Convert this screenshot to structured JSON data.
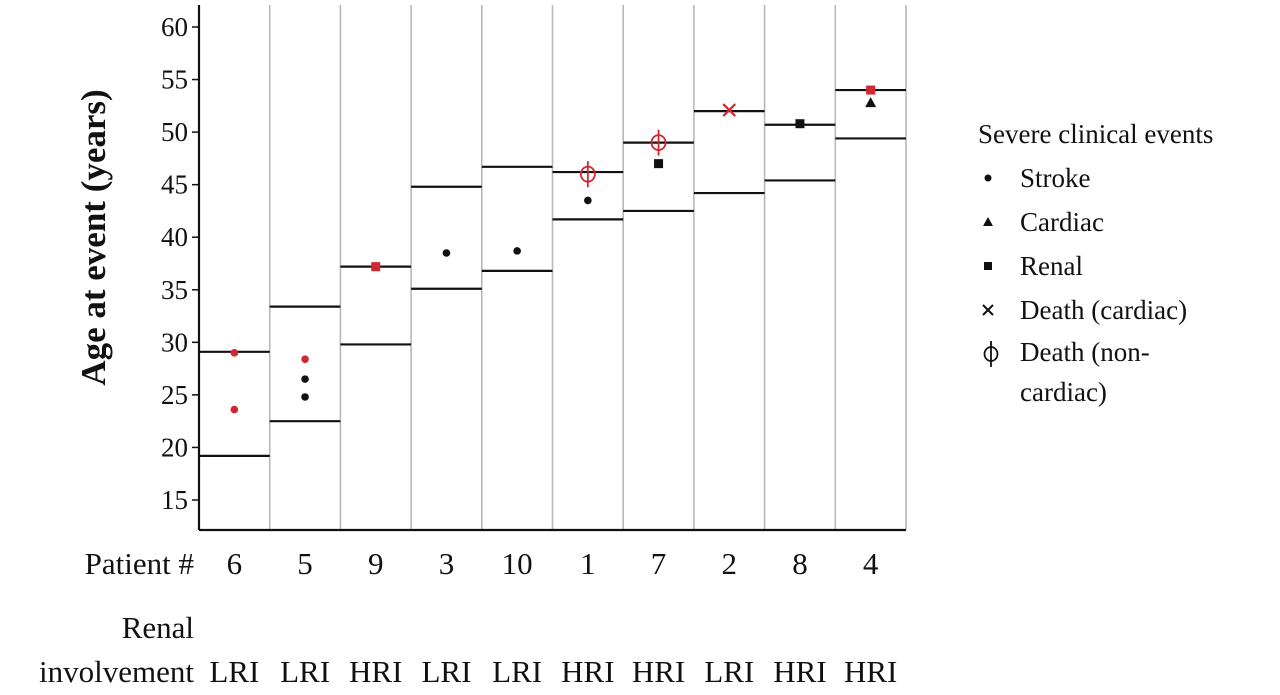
{
  "chart_data": {
    "type": "scatter",
    "ylabel": "Age at event (years)",
    "ylim": [
      12,
      62
    ],
    "yticks": [
      15,
      20,
      25,
      30,
      35,
      40,
      45,
      50,
      55,
      60
    ],
    "row_labels": {
      "patient": "Patient #",
      "renal_line1": "Renal",
      "renal_line2": "involvement"
    },
    "patients": [
      {
        "id": "6",
        "renal": "LRI",
        "age_range": [
          19.2,
          29.1
        ],
        "events": [
          {
            "type": "stroke",
            "age": 29.0,
            "color": "red"
          },
          {
            "type": "stroke",
            "age": 23.6,
            "color": "red"
          }
        ]
      },
      {
        "id": "5",
        "renal": "LRI",
        "age_range": [
          22.5,
          33.4
        ],
        "events": [
          {
            "type": "stroke",
            "age": 28.4,
            "color": "red"
          },
          {
            "type": "stroke",
            "age": 26.5,
            "color": "black"
          },
          {
            "type": "stroke",
            "age": 24.8,
            "color": "black"
          }
        ]
      },
      {
        "id": "9",
        "renal": "HRI",
        "age_range": [
          29.8,
          37.2
        ],
        "events": [
          {
            "type": "renal",
            "age": 37.2,
            "color": "red"
          }
        ]
      },
      {
        "id": "3",
        "renal": "LRI",
        "age_range": [
          35.1,
          44.8
        ],
        "events": [
          {
            "type": "stroke",
            "age": 38.5,
            "color": "black"
          }
        ]
      },
      {
        "id": "10",
        "renal": "LRI",
        "age_range": [
          36.8,
          46.7
        ],
        "events": [
          {
            "type": "stroke",
            "age": 38.7,
            "color": "black"
          }
        ]
      },
      {
        "id": "1",
        "renal": "HRI",
        "age_range": [
          41.7,
          46.2
        ],
        "events": [
          {
            "type": "death_noncardiac",
            "age": 46.0,
            "color": "red"
          },
          {
            "type": "stroke",
            "age": 43.5,
            "color": "black"
          }
        ]
      },
      {
        "id": "7",
        "renal": "HRI",
        "age_range": [
          42.5,
          49.0
        ],
        "events": [
          {
            "type": "death_noncardiac",
            "age": 49.0,
            "color": "red"
          },
          {
            "type": "renal",
            "age": 47.0,
            "color": "black"
          }
        ]
      },
      {
        "id": "2",
        "renal": "LRI",
        "age_range": [
          44.2,
          52.0
        ],
        "events": [
          {
            "type": "death_cardiac",
            "age": 52.1,
            "color": "red"
          }
        ]
      },
      {
        "id": "8",
        "renal": "HRI",
        "age_range": [
          45.4,
          50.7
        ],
        "events": [
          {
            "type": "renal",
            "age": 50.8,
            "color": "black"
          }
        ]
      },
      {
        "id": "4",
        "renal": "HRI",
        "age_range": [
          49.4,
          54.0
        ],
        "events": [
          {
            "type": "renal",
            "age": 54.0,
            "color": "red"
          },
          {
            "type": "cardiac",
            "age": 52.8,
            "color": "black"
          }
        ]
      }
    ],
    "legend": {
      "title": "Severe clinical events",
      "items": [
        {
          "key": "stroke",
          "label": "Stroke"
        },
        {
          "key": "cardiac",
          "label": "Cardiac"
        },
        {
          "key": "renal",
          "label": "Renal"
        },
        {
          "key": "death_cardiac",
          "label": "Death (cardiac)"
        },
        {
          "key": "death_noncardiac",
          "label": "Death (non-cardiac)"
        }
      ]
    },
    "colors": {
      "red": "#d22630",
      "black": "#111111",
      "range": "#111111",
      "divider": "#b8b8b8"
    }
  }
}
